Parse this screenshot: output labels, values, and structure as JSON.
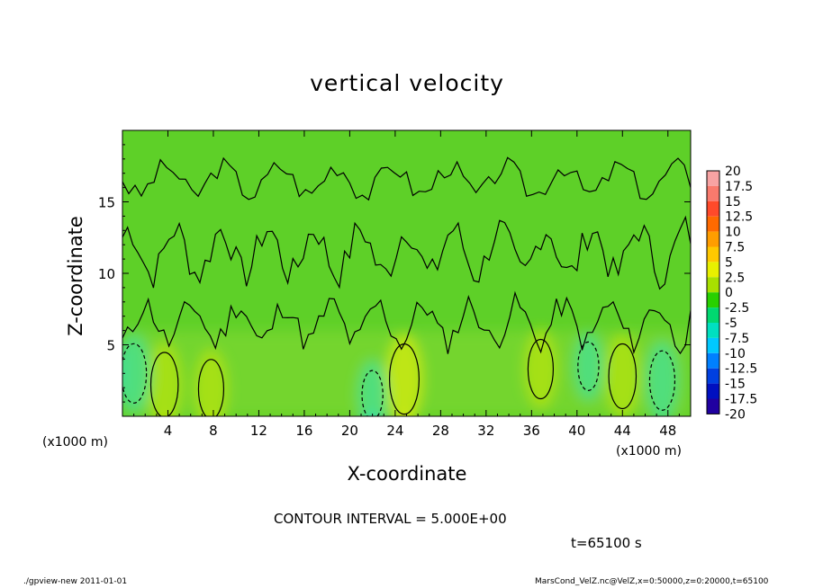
{
  "chart_data": {
    "type": "heatmap",
    "title": "vertical velocity",
    "xlabel": "X-coordinate",
    "ylabel": "Z-coordinate",
    "x_unit": "(x1000 m)",
    "xlim": [
      0,
      50
    ],
    "ylim": [
      0,
      20
    ],
    "x_ticks": [
      4,
      8,
      12,
      16,
      20,
      24,
      28,
      32,
      36,
      40,
      44,
      48
    ],
    "y_ticks": [
      5,
      10,
      15
    ],
    "colorbar": {
      "levels": [
        "20",
        "17.5",
        "15",
        "12.5",
        "10",
        "7.5",
        "5",
        "2.5",
        "0",
        "-2.5",
        "-5",
        "-7.5",
        "-10",
        "-12.5",
        "-15",
        "-17.5",
        "-20"
      ],
      "colors": [
        "#f7a3a3",
        "#f97a6d",
        "#ff4a2a",
        "#ff6a00",
        "#ff9d00",
        "#ffc800",
        "#e8f000",
        "#a8e000",
        "#28d000",
        "#00d870",
        "#00e0c0",
        "#00c8ff",
        "#0080ff",
        "#0040e0",
        "#0010c0",
        "#2000a0",
        "#6a00b0"
      ]
    },
    "features": [
      {
        "kind": "updraft",
        "x": 3.7,
        "z": 2.2,
        "w": 6
      },
      {
        "kind": "updraft",
        "x": 7.8,
        "z": 1.9,
        "w": 5
      },
      {
        "kind": "updraft",
        "x": 24.8,
        "z": 2.6,
        "w": 7
      },
      {
        "kind": "updraft",
        "x": 36.8,
        "z": 3.3,
        "w": 5
      },
      {
        "kind": "updraft",
        "x": 44.0,
        "z": 2.8,
        "w": 6
      },
      {
        "kind": "downdraft",
        "x": 1.0,
        "z": 3.0,
        "w": -5
      },
      {
        "kind": "downdraft",
        "x": 47.5,
        "z": 2.5,
        "w": -5
      },
      {
        "kind": "downdraft",
        "x": 22.0,
        "z": 1.5,
        "w": -3
      },
      {
        "kind": "downdraft",
        "x": 41.0,
        "z": 3.5,
        "w": -3
      }
    ]
  },
  "annotations": {
    "contour_interval": "CONTOUR INTERVAL = 5.000E+00",
    "time": "t=65100 s"
  },
  "footer": {
    "left": "./gpview-new  2011-01-01",
    "right": "MarsCond_VelZ.nc@VelZ,x=0:50000,z=0:20000,t=65100"
  }
}
